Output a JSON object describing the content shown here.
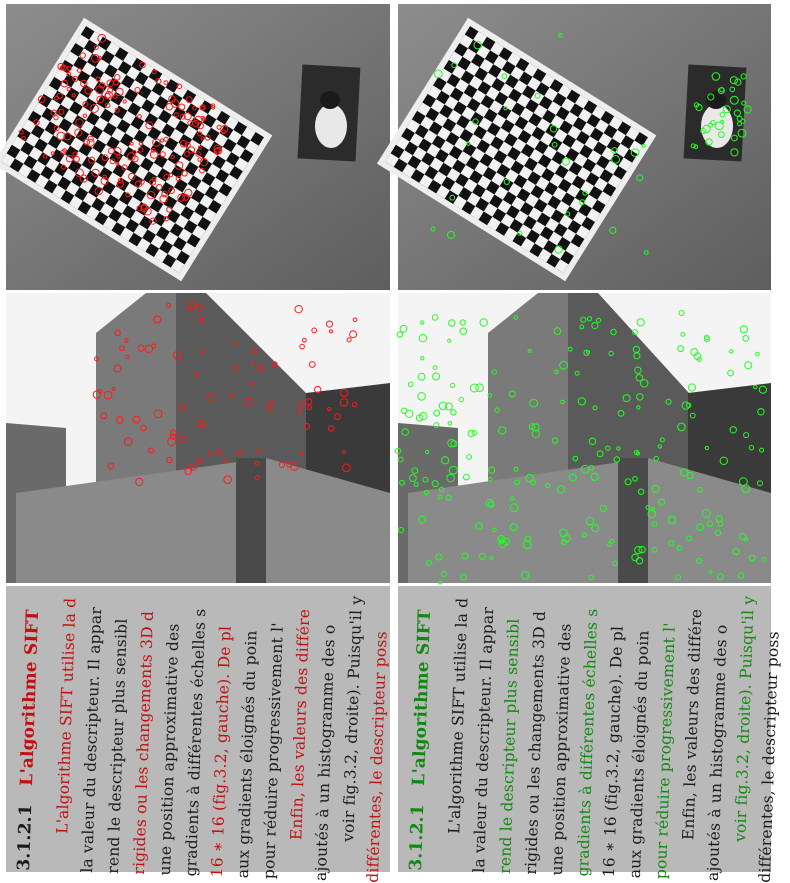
{
  "document": {
    "heading_number": "3.1.2.1",
    "heading_title": "L'algorithme SIFT",
    "lines": [
      "L'algorithme SIFT utilise la d",
      "la valeur du descripteur. Il appar",
      "rend le descripteur plus sensibl",
      "rigides ou les changements 3D d",
      "une position approximative des",
      "gradients à différentes échelles s",
      "16 ∗ 16 (fig.3.2, gauche). De pl",
      "aux gradients éloignés du poin",
      "pour réduire progressivement l'",
      "Enfin, les valeurs des différe",
      "ajoutés à un histogramme des o",
      "voir fig.3.2, droite). Puisqu'il y",
      "différentes, le descripteur poss"
    ]
  },
  "colors": {
    "left_keypoints": "#ff1a1a",
    "right_keypoints": "#22ff22"
  }
}
